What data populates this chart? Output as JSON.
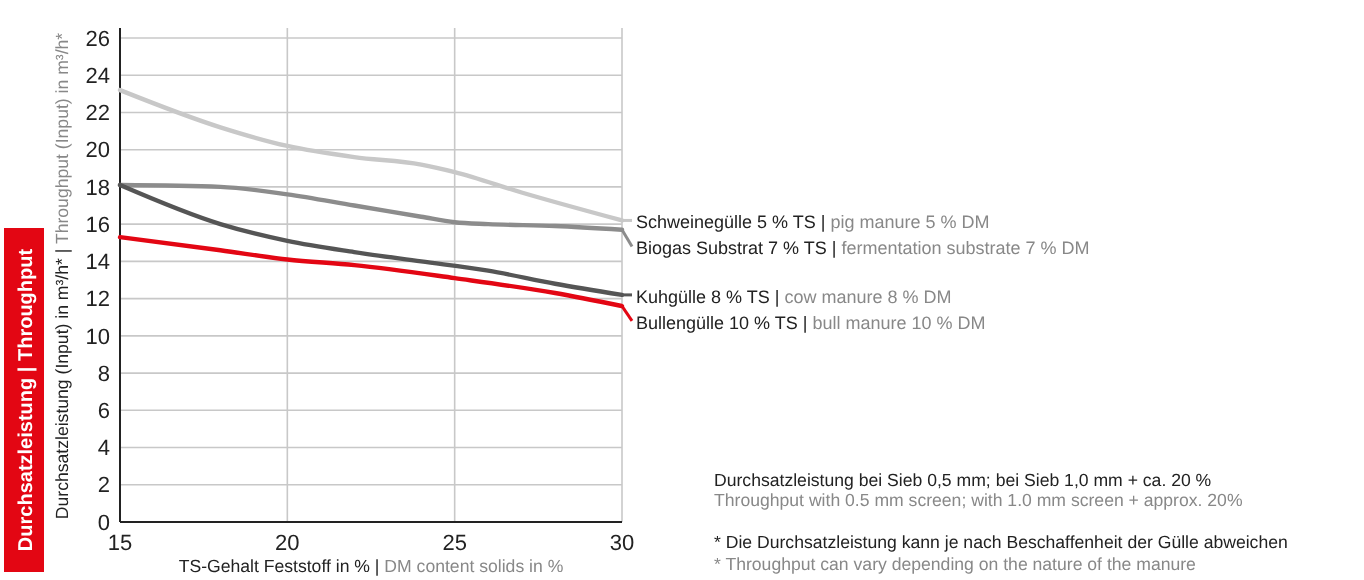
{
  "chart_data": {
    "type": "line",
    "xlabel": "TS-Gehalt Feststoff in % | DM content solids in %",
    "ylabel": "Durchsatzleistung (Input) in m³/h* | Throughput (Input) in m³/h*",
    "series": [
      {
        "name": "Schweinegülle 5 % TS | pig manure 5 % DM",
        "color": "#c8c8c8",
        "x": [
          15,
          18,
          20,
          22,
          24,
          25,
          27,
          30
        ],
        "values": [
          23.2,
          21.2,
          20.2,
          19.6,
          19.2,
          18.8,
          17.7,
          16.2
        ]
      },
      {
        "name": "Biogas Substrat 7 % TS | fermentation substrate 7 % DM",
        "color": "#8c8c8c",
        "x": [
          15,
          18,
          20,
          22,
          24,
          25,
          26,
          28,
          30
        ],
        "values": [
          18.1,
          18.0,
          17.6,
          17.0,
          16.4,
          16.1,
          16.0,
          15.9,
          15.7
        ]
      },
      {
        "name": "Kuhgülle 8 % TS | cow manure 8 % DM",
        "color": "#555555",
        "x": [
          15,
          18,
          20,
          22,
          24,
          26,
          28,
          30
        ],
        "values": [
          18.1,
          16.0,
          15.1,
          14.5,
          14.0,
          13.5,
          12.8,
          12.2
        ]
      },
      {
        "name": "Bullengülle 10 % TS | bull manure 10 % DM",
        "color": "#e30613",
        "x": [
          15,
          18,
          20,
          22,
          25,
          28,
          30
        ],
        "values": [
          15.3,
          14.6,
          14.1,
          13.8,
          13.1,
          12.3,
          11.6
        ]
      }
    ],
    "xlim": [
      15,
      30
    ],
    "ylim": [
      0,
      26
    ],
    "xticks": [
      15,
      20,
      25,
      30
    ],
    "yticks": [
      0,
      2,
      4,
      6,
      8,
      10,
      12,
      14,
      16,
      18,
      20,
      22,
      24,
      26
    ],
    "grid": true,
    "legend": "right",
    "marker": "none",
    "line_style": "solid",
    "annotations": [
      "Durchsatzleistung | Throughput",
      "Durchsatzleistung bei Sieb 0,5 mm; bei Sieb 1,0 mm + ca. 20 %",
      "Throughput with 0.5 mm screen; with 1.0 mm screen + approx. 20%",
      "* Die Durchsatzleistung kann je nach Beschaffenheit der Gülle abweichen",
      "* Throughput can vary depending on the nature of the manure"
    ]
  }
}
